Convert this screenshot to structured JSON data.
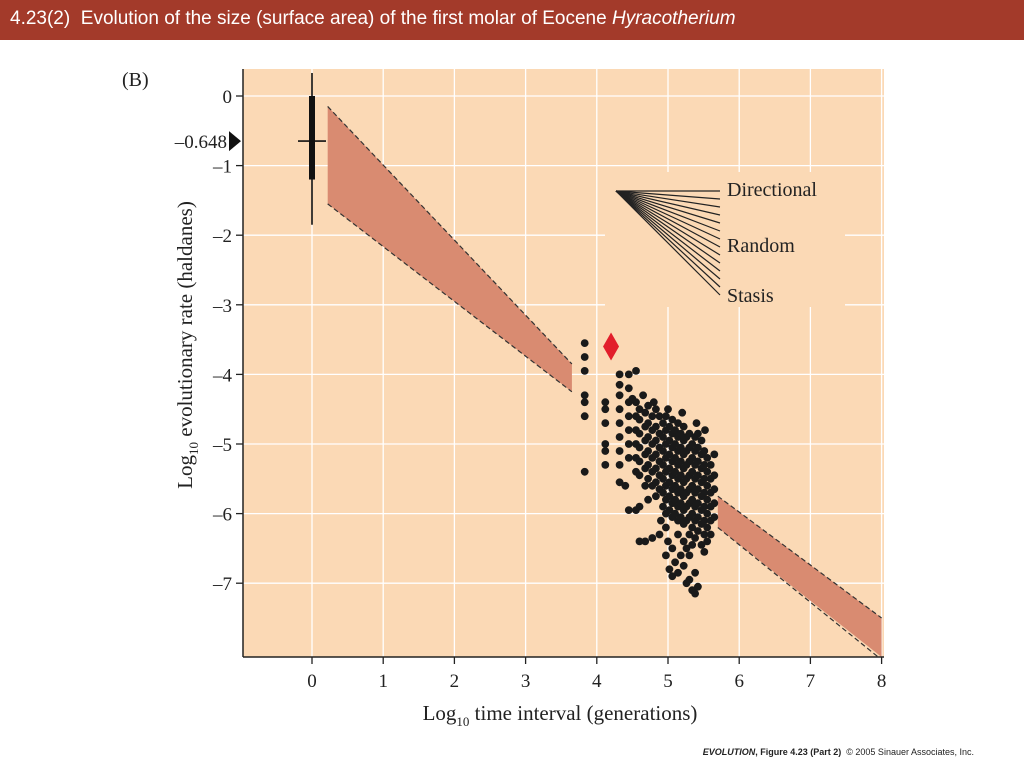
{
  "slide_title": {
    "number": "4.23(2)",
    "text": "Evolution of the size (surface area) of the first molar of Eocene",
    "italic": "Hyracotherium"
  },
  "chart_data": {
    "type": "scatter",
    "panel_label": "(B)",
    "xlabel": {
      "main": "Log",
      "sub": "10",
      "rest": " time interval (generations)"
    },
    "ylabel": {
      "main": "Log",
      "sub": "10",
      "rest": " evolutionary rate (haldanes)"
    },
    "xlim": [
      -1,
      8
    ],
    "ylim": [
      -8.05,
      0.4
    ],
    "x_ticks": [
      0,
      1,
      2,
      3,
      4,
      5,
      6,
      7,
      8
    ],
    "x_tick_labels": [
      "0",
      "1",
      "2",
      "3",
      "4",
      "5",
      "6",
      "7",
      "8"
    ],
    "y_ticks": [
      0,
      -1,
      -2,
      -3,
      -4,
      -5,
      -6,
      -7
    ],
    "y_tick_labels": [
      "0",
      "–1",
      "–2",
      "–3",
      "–4",
      "–5",
      "–6",
      "–7"
    ],
    "grid": true,
    "colors": {
      "background": "#fbd9b5",
      "grid": "#ffffff",
      "band": "#d98b71",
      "points": "#1a1a1a",
      "diamond": "#e21e2b",
      "marker": "#111111"
    },
    "marker_annotation": {
      "label": "–0.648",
      "y": -0.648
    },
    "generation_one": {
      "x": 0,
      "whisker": [
        0.33,
        -1.85
      ],
      "box": [
        0,
        -1.2
      ],
      "median": -0.648
    },
    "highlight_point": {
      "x": 4.2,
      "y": -3.6
    },
    "bands": [
      {
        "x": [
          0.22,
          3.65
        ],
        "upper": [
          -0.15,
          -3.85
        ],
        "lower": [
          -1.55,
          -4.25
        ]
      },
      {
        "x": [
          5.7,
          8.0
        ],
        "upper": [
          -5.75,
          -7.5
        ],
        "lower": [
          -6.2,
          -8.1
        ]
      }
    ],
    "legend": {
      "placement": "upper-right",
      "labels": [
        "Directional",
        "Random",
        "Stasis"
      ]
    },
    "points": [
      [
        3.83,
        -3.55
      ],
      [
        3.83,
        -3.75
      ],
      [
        3.83,
        -3.95
      ],
      [
        3.83,
        -4.3
      ],
      [
        3.83,
        -4.4
      ],
      [
        3.83,
        -4.6
      ],
      [
        3.83,
        -5.4
      ],
      [
        4.12,
        -4.4
      ],
      [
        4.12,
        -4.5
      ],
      [
        4.12,
        -4.7
      ],
      [
        4.12,
        -5.0
      ],
      [
        4.12,
        -5.1
      ],
      [
        4.12,
        -5.3
      ],
      [
        4.32,
        -4.0
      ],
      [
        4.32,
        -4.15
      ],
      [
        4.32,
        -4.3
      ],
      [
        4.32,
        -4.5
      ],
      [
        4.32,
        -4.7
      ],
      [
        4.32,
        -4.9
      ],
      [
        4.32,
        -5.1
      ],
      [
        4.32,
        -5.3
      ],
      [
        4.32,
        -5.55
      ],
      [
        4.45,
        -4.0
      ],
      [
        4.45,
        -4.2
      ],
      [
        4.45,
        -4.4
      ],
      [
        4.45,
        -4.6
      ],
      [
        4.45,
        -4.8
      ],
      [
        4.45,
        -5.0
      ],
      [
        4.45,
        -5.2
      ],
      [
        4.45,
        -5.95
      ],
      [
        4.55,
        -3.95
      ],
      [
        4.55,
        -4.4
      ],
      [
        4.55,
        -4.6
      ],
      [
        4.55,
        -4.8
      ],
      [
        4.55,
        -5.0
      ],
      [
        4.55,
        -5.2
      ],
      [
        4.55,
        -5.4
      ],
      [
        4.55,
        -5.95
      ],
      [
        4.6,
        -4.5
      ],
      [
        4.6,
        -4.65
      ],
      [
        4.6,
        -4.85
      ],
      [
        4.6,
        -5.05
      ],
      [
        4.6,
        -5.25
      ],
      [
        4.6,
        -5.45
      ],
      [
        4.6,
        -6.4
      ],
      [
        4.68,
        -4.55
      ],
      [
        4.68,
        -4.75
      ],
      [
        4.68,
        -4.95
      ],
      [
        4.68,
        -5.15
      ],
      [
        4.68,
        -5.35
      ],
      [
        4.68,
        -5.6
      ],
      [
        4.68,
        -6.4
      ],
      [
        4.72,
        -4.45
      ],
      [
        4.72,
        -4.7
      ],
      [
        4.72,
        -4.9
      ],
      [
        4.72,
        -5.1
      ],
      [
        4.72,
        -5.3
      ],
      [
        4.72,
        -5.5
      ],
      [
        4.72,
        -5.8
      ],
      [
        4.78,
        -4.6
      ],
      [
        4.78,
        -4.8
      ],
      [
        4.78,
        -5.0
      ],
      [
        4.78,
        -5.2
      ],
      [
        4.78,
        -5.4
      ],
      [
        4.78,
        -5.6
      ],
      [
        4.78,
        -6.35
      ],
      [
        4.83,
        -4.5
      ],
      [
        4.83,
        -4.75
      ],
      [
        4.83,
        -4.95
      ],
      [
        4.83,
        -5.15
      ],
      [
        4.83,
        -5.35
      ],
      [
        4.83,
        -5.55
      ],
      [
        4.83,
        -5.75
      ],
      [
        4.88,
        -4.6
      ],
      [
        4.88,
        -4.85
      ],
      [
        4.88,
        -5.05
      ],
      [
        4.88,
        -5.25
      ],
      [
        4.88,
        -5.45
      ],
      [
        4.88,
        -5.65
      ],
      [
        4.88,
        -6.3
      ],
      [
        4.93,
        -4.7
      ],
      [
        4.93,
        -4.9
      ],
      [
        4.93,
        -5.1
      ],
      [
        4.93,
        -5.3
      ],
      [
        4.93,
        -5.5
      ],
      [
        4.93,
        -5.7
      ],
      [
        4.93,
        -5.9
      ],
      [
        4.97,
        -4.6
      ],
      [
        4.97,
        -4.8
      ],
      [
        4.97,
        -5.0
      ],
      [
        4.97,
        -5.2
      ],
      [
        4.97,
        -5.4
      ],
      [
        4.97,
        -5.6
      ],
      [
        4.97,
        -5.8
      ],
      [
        4.97,
        -6.0
      ],
      [
        4.97,
        -6.2
      ],
      [
        4.97,
        -6.6
      ],
      [
        5.02,
        -4.75
      ],
      [
        5.02,
        -4.95
      ],
      [
        5.02,
        -5.15
      ],
      [
        5.02,
        -5.35
      ],
      [
        5.02,
        -5.55
      ],
      [
        5.02,
        -5.75
      ],
      [
        5.02,
        -5.95
      ],
      [
        5.02,
        -6.8
      ],
      [
        5.06,
        -4.65
      ],
      [
        5.06,
        -4.85
      ],
      [
        5.06,
        -5.05
      ],
      [
        5.06,
        -5.25
      ],
      [
        5.06,
        -5.45
      ],
      [
        5.06,
        -5.65
      ],
      [
        5.06,
        -5.85
      ],
      [
        5.06,
        -6.05
      ],
      [
        5.06,
        -6.5
      ],
      [
        5.06,
        -6.9
      ],
      [
        5.1,
        -4.8
      ],
      [
        5.1,
        -5.0
      ],
      [
        5.1,
        -5.2
      ],
      [
        5.1,
        -5.4
      ],
      [
        5.1,
        -5.6
      ],
      [
        5.1,
        -5.8
      ],
      [
        5.1,
        -6.0
      ],
      [
        5.1,
        -6.7
      ],
      [
        5.14,
        -4.7
      ],
      [
        5.14,
        -4.9
      ],
      [
        5.14,
        -5.1
      ],
      [
        5.14,
        -5.3
      ],
      [
        5.14,
        -5.5
      ],
      [
        5.14,
        -5.7
      ],
      [
        5.14,
        -5.9
      ],
      [
        5.14,
        -6.1
      ],
      [
        5.14,
        -6.3
      ],
      [
        5.14,
        -6.85
      ],
      [
        5.18,
        -4.85
      ],
      [
        5.18,
        -5.05
      ],
      [
        5.18,
        -5.25
      ],
      [
        5.18,
        -5.45
      ],
      [
        5.18,
        -5.65
      ],
      [
        5.18,
        -5.85
      ],
      [
        5.18,
        -6.05
      ],
      [
        5.18,
        -6.6
      ],
      [
        5.22,
        -4.75
      ],
      [
        5.22,
        -4.95
      ],
      [
        5.22,
        -5.15
      ],
      [
        5.22,
        -5.35
      ],
      [
        5.22,
        -5.55
      ],
      [
        5.22,
        -5.75
      ],
      [
        5.22,
        -5.95
      ],
      [
        5.22,
        -6.15
      ],
      [
        5.22,
        -6.4
      ],
      [
        5.22,
        -6.75
      ],
      [
        5.26,
        -4.9
      ],
      [
        5.26,
        -5.1
      ],
      [
        5.26,
        -5.3
      ],
      [
        5.26,
        -5.5
      ],
      [
        5.26,
        -5.7
      ],
      [
        5.26,
        -5.9
      ],
      [
        5.26,
        -6.1
      ],
      [
        5.26,
        -6.5
      ],
      [
        5.26,
        -7.0
      ],
      [
        5.3,
        -4.85
      ],
      [
        5.3,
        -5.05
      ],
      [
        5.3,
        -5.25
      ],
      [
        5.3,
        -5.45
      ],
      [
        5.3,
        -5.65
      ],
      [
        5.3,
        -5.85
      ],
      [
        5.3,
        -6.05
      ],
      [
        5.3,
        -6.3
      ],
      [
        5.3,
        -6.6
      ],
      [
        5.3,
        -6.95
      ],
      [
        5.34,
        -5.0
      ],
      [
        5.34,
        -5.2
      ],
      [
        5.34,
        -5.4
      ],
      [
        5.34,
        -5.6
      ],
      [
        5.34,
        -5.8
      ],
      [
        5.34,
        -6.0
      ],
      [
        5.34,
        -6.2
      ],
      [
        5.34,
        -6.45
      ],
      [
        5.34,
        -7.1
      ],
      [
        5.38,
        -4.9
      ],
      [
        5.38,
        -5.1
      ],
      [
        5.38,
        -5.3
      ],
      [
        5.38,
        -5.5
      ],
      [
        5.38,
        -5.7
      ],
      [
        5.38,
        -5.9
      ],
      [
        5.38,
        -6.1
      ],
      [
        5.38,
        -6.35
      ],
      [
        5.38,
        -6.85
      ],
      [
        5.38,
        -7.15
      ],
      [
        5.42,
        -4.85
      ],
      [
        5.42,
        -5.05
      ],
      [
        5.42,
        -5.25
      ],
      [
        5.42,
        -5.45
      ],
      [
        5.42,
        -5.65
      ],
      [
        5.42,
        -5.85
      ],
      [
        5.42,
        -6.05
      ],
      [
        5.42,
        -6.25
      ],
      [
        5.42,
        -7.05
      ],
      [
        5.47,
        -4.95
      ],
      [
        5.47,
        -5.15
      ],
      [
        5.47,
        -5.35
      ],
      [
        5.47,
        -5.55
      ],
      [
        5.47,
        -5.75
      ],
      [
        5.47,
        -5.95
      ],
      [
        5.47,
        -6.15
      ],
      [
        5.47,
        -6.45
      ],
      [
        5.51,
        -5.1
      ],
      [
        5.51,
        -5.3
      ],
      [
        5.51,
        -5.5
      ],
      [
        5.51,
        -5.7
      ],
      [
        5.51,
        -5.9
      ],
      [
        5.51,
        -6.1
      ],
      [
        5.51,
        -6.3
      ],
      [
        5.51,
        -6.55
      ],
      [
        5.55,
        -5.2
      ],
      [
        5.55,
        -5.4
      ],
      [
        5.55,
        -5.6
      ],
      [
        5.55,
        -5.8
      ],
      [
        5.55,
        -6.0
      ],
      [
        5.55,
        -6.2
      ],
      [
        5.55,
        -6.4
      ],
      [
        5.6,
        -5.3
      ],
      [
        5.6,
        -5.5
      ],
      [
        5.6,
        -5.7
      ],
      [
        5.6,
        -5.9
      ],
      [
        5.6,
        -6.1
      ],
      [
        5.6,
        -6.3
      ],
      [
        5.65,
        -5.15
      ],
      [
        5.65,
        -5.45
      ],
      [
        5.65,
        -5.65
      ],
      [
        5.65,
        -5.85
      ],
      [
        5.65,
        -6.05
      ],
      [
        5.52,
        -4.8
      ],
      [
        5.4,
        -4.7
      ],
      [
        5.2,
        -4.55
      ],
      [
        5.0,
        -4.5
      ],
      [
        4.8,
        -4.4
      ],
      [
        4.65,
        -4.3
      ],
      [
        4.5,
        -4.35
      ],
      [
        4.4,
        -5.6
      ],
      [
        4.6,
        -5.9
      ],
      [
        4.9,
        -6.1
      ],
      [
        5.0,
        -6.4
      ]
    ]
  }
}
